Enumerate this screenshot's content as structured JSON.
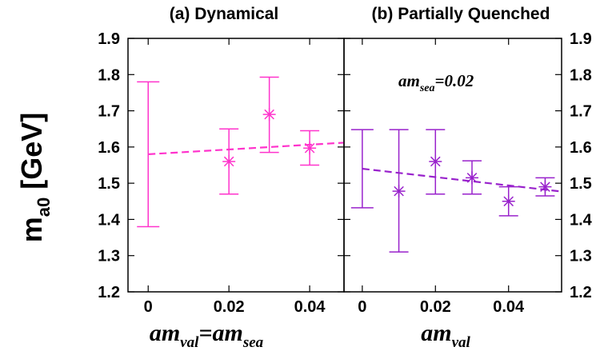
{
  "chart_data": [
    {
      "type": "scatter",
      "title": "(a) Dynamical",
      "ylabel_main": "m",
      "ylabel_sub": "a0",
      "ylabel_unit": " [GeV]",
      "xlabel": {
        "p1": "am",
        "s1": "val",
        "p2": "=am",
        "s2": "sea"
      },
      "xlim": [
        -0.005,
        0.0485
      ],
      "ylim": [
        1.2,
        1.9
      ],
      "xticks": [
        0,
        0.02,
        0.04
      ],
      "xtick_labels": [
        "0",
        "0.02",
        "0.04"
      ],
      "yticks": [
        1.2,
        1.3,
        1.4,
        1.5,
        1.6,
        1.7,
        1.8,
        1.9
      ],
      "ytick_labels": [
        "1.2",
        "1.3",
        "1.4",
        "1.5",
        "1.6",
        "1.7",
        "1.8",
        "1.9"
      ],
      "color": "#ff33cc",
      "points": [
        {
          "x": 0.02,
          "y": 1.56,
          "ylow": 1.47,
          "yhigh": 1.65
        },
        {
          "x": 0.03,
          "y": 1.69,
          "ylow": 1.585,
          "yhigh": 1.793
        },
        {
          "x": 0.04,
          "y": 1.597,
          "ylow": 1.55,
          "yhigh": 1.645
        }
      ],
      "extrapolation": {
        "x": 0,
        "y": 1.58,
        "ylow": 1.38,
        "yhigh": 1.78
      },
      "fit_line": {
        "x": [
          0,
          0.0485
        ],
        "y": [
          1.58,
          1.612
        ]
      }
    },
    {
      "type": "scatter",
      "title": "(b) Partially Quenched",
      "annotation": {
        "p1": "am",
        "s1": "sea",
        "p2": "=0.02"
      },
      "xlabel": {
        "p1": "am",
        "s1": "val"
      },
      "xlim": [
        -0.005,
        0.0545
      ],
      "ylim": [
        1.2,
        1.9
      ],
      "xticks": [
        0,
        0.02,
        0.04
      ],
      "xtick_labels": [
        "0",
        "0.02",
        "0.04"
      ],
      "yticks": [
        1.2,
        1.3,
        1.4,
        1.5,
        1.6,
        1.7,
        1.8,
        1.9
      ],
      "ytick_labels": [
        "1.2",
        "1.3",
        "1.4",
        "1.5",
        "1.6",
        "1.7",
        "1.8",
        "1.9"
      ],
      "color": "#9922cc",
      "points": [
        {
          "x": 0.01,
          "y": 1.478,
          "ylow": 1.31,
          "yhigh": 1.648
        },
        {
          "x": 0.02,
          "y": 1.56,
          "ylow": 1.47,
          "yhigh": 1.648
        },
        {
          "x": 0.03,
          "y": 1.515,
          "ylow": 1.47,
          "yhigh": 1.562
        },
        {
          "x": 0.04,
          "y": 1.45,
          "ylow": 1.41,
          "yhigh": 1.49
        },
        {
          "x": 0.05,
          "y": 1.49,
          "ylow": 1.465,
          "yhigh": 1.515
        }
      ],
      "extrapolation": {
        "x": 0,
        "y": 1.54,
        "ylow": 1.432,
        "yhigh": 1.648
      },
      "fit_line": {
        "x": [
          0,
          0.0545
        ],
        "y": [
          1.54,
          1.477
        ]
      }
    }
  ]
}
